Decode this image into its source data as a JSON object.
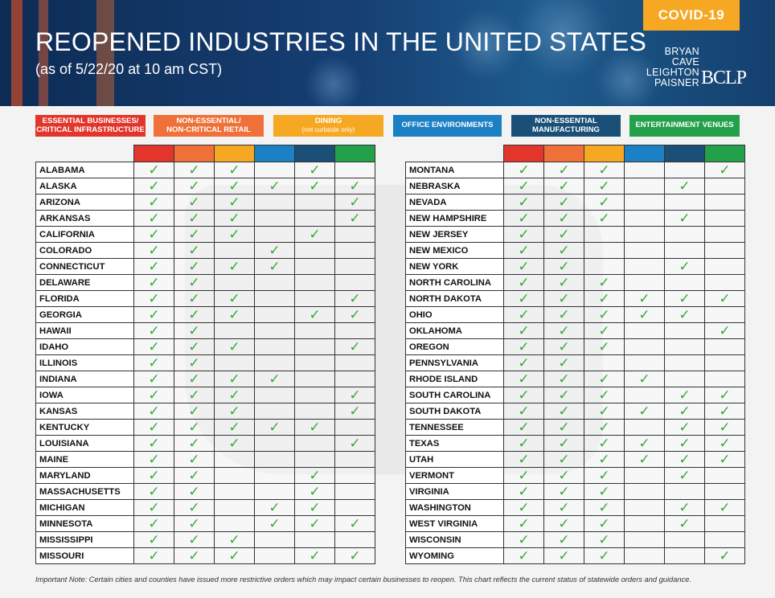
{
  "header": {
    "badge": "COVID-19",
    "title": "REOPENED INDUSTRIES IN THE UNITED STATES",
    "subtitle": "(as of 5/22/20 at 10 am CST)",
    "logo_lines": [
      "BRYAN",
      "CAVE",
      "LEIGHTON",
      "PAISNER"
    ],
    "logo_mark": "BCLP"
  },
  "legend": [
    {
      "label": "ESSENTIAL BUSINESSES/\nCRITICAL INFRASTRUCTURE",
      "sub": "",
      "color": "#e2352b"
    },
    {
      "label": "NON-ESSENTIAL/\nNON-CRITICAL RETAIL",
      "sub": "",
      "color": "#ef7139"
    },
    {
      "label": "DINING",
      "sub": "(not curbside only)",
      "color": "#f7a823"
    },
    {
      "label": "OFFICE ENVIRONMENTS",
      "sub": "",
      "color": "#1b80c4"
    },
    {
      "label": "NON-ESSENTIAL\nMANUFACTURING",
      "sub": "",
      "color": "#1a4f78"
    },
    {
      "label": "ENTERTAINMENT VENUES",
      "sub": "",
      "color": "#23a04a"
    }
  ],
  "check_symbol": "✓",
  "tables": {
    "left": [
      {
        "state": "ALABAMA",
        "marks": [
          1,
          1,
          1,
          0,
          1,
          0
        ]
      },
      {
        "state": "ALASKA",
        "marks": [
          1,
          1,
          1,
          1,
          1,
          1
        ]
      },
      {
        "state": "ARIZONA",
        "marks": [
          1,
          1,
          1,
          0,
          0,
          1
        ]
      },
      {
        "state": "ARKANSAS",
        "marks": [
          1,
          1,
          1,
          0,
          0,
          1
        ]
      },
      {
        "state": "CALIFORNIA",
        "marks": [
          1,
          1,
          1,
          0,
          1,
          0
        ]
      },
      {
        "state": "COLORADO",
        "marks": [
          1,
          1,
          0,
          1,
          0,
          0
        ]
      },
      {
        "state": "CONNECTICUT",
        "marks": [
          1,
          1,
          1,
          1,
          0,
          0
        ]
      },
      {
        "state": "DELAWARE",
        "marks": [
          1,
          1,
          0,
          0,
          0,
          0
        ]
      },
      {
        "state": "FLORIDA",
        "marks": [
          1,
          1,
          1,
          0,
          0,
          1
        ]
      },
      {
        "state": "GEORGIA",
        "marks": [
          1,
          1,
          1,
          0,
          1,
          1
        ]
      },
      {
        "state": "HAWAII",
        "marks": [
          1,
          1,
          0,
          0,
          0,
          0
        ]
      },
      {
        "state": "IDAHO",
        "marks": [
          1,
          1,
          1,
          0,
          0,
          1
        ]
      },
      {
        "state": "ILLINOIS",
        "marks": [
          1,
          1,
          0,
          0,
          0,
          0
        ]
      },
      {
        "state": "INDIANA",
        "marks": [
          1,
          1,
          1,
          1,
          0,
          0
        ]
      },
      {
        "state": "IOWA",
        "marks": [
          1,
          1,
          1,
          0,
          0,
          1
        ]
      },
      {
        "state": "KANSAS",
        "marks": [
          1,
          1,
          1,
          0,
          0,
          1
        ]
      },
      {
        "state": "KENTUCKY",
        "marks": [
          1,
          1,
          1,
          1,
          1,
          0
        ]
      },
      {
        "state": "LOUISIANA",
        "marks": [
          1,
          1,
          1,
          0,
          0,
          1
        ]
      },
      {
        "state": "MAINE",
        "marks": [
          1,
          1,
          0,
          0,
          0,
          0
        ]
      },
      {
        "state": "MARYLAND",
        "marks": [
          1,
          1,
          0,
          0,
          1,
          0
        ]
      },
      {
        "state": "MASSACHUSETTS",
        "marks": [
          1,
          1,
          0,
          0,
          1,
          0
        ]
      },
      {
        "state": "MICHIGAN",
        "marks": [
          1,
          1,
          0,
          1,
          1,
          0
        ]
      },
      {
        "state": "MINNESOTA",
        "marks": [
          1,
          1,
          0,
          1,
          1,
          1
        ]
      },
      {
        "state": "MISSISSIPPI",
        "marks": [
          1,
          1,
          1,
          0,
          0,
          0
        ]
      },
      {
        "state": "MISSOURI",
        "marks": [
          1,
          1,
          1,
          0,
          1,
          1
        ]
      }
    ],
    "right": [
      {
        "state": "MONTANA",
        "marks": [
          1,
          1,
          1,
          0,
          0,
          1
        ]
      },
      {
        "state": "NEBRASKA",
        "marks": [
          1,
          1,
          1,
          0,
          1,
          0
        ]
      },
      {
        "state": "NEVADA",
        "marks": [
          1,
          1,
          1,
          0,
          0,
          0
        ]
      },
      {
        "state": "NEW HAMPSHIRE",
        "marks": [
          1,
          1,
          1,
          0,
          1,
          0
        ]
      },
      {
        "state": "NEW JERSEY",
        "marks": [
          1,
          1,
          0,
          0,
          0,
          0
        ]
      },
      {
        "state": "NEW MEXICO",
        "marks": [
          1,
          1,
          0,
          0,
          0,
          0
        ]
      },
      {
        "state": "NEW YORK",
        "marks": [
          1,
          1,
          0,
          0,
          1,
          0
        ]
      },
      {
        "state": "NORTH CAROLINA",
        "marks": [
          1,
          1,
          1,
          0,
          0,
          0
        ]
      },
      {
        "state": "NORTH DAKOTA",
        "marks": [
          1,
          1,
          1,
          1,
          1,
          1
        ]
      },
      {
        "state": "OHIO",
        "marks": [
          1,
          1,
          1,
          1,
          1,
          0
        ]
      },
      {
        "state": "OKLAHOMA",
        "marks": [
          1,
          1,
          1,
          0,
          0,
          1
        ]
      },
      {
        "state": "OREGON",
        "marks": [
          1,
          1,
          1,
          0,
          0,
          0
        ]
      },
      {
        "state": "PENNSYLVANIA",
        "marks": [
          1,
          1,
          0,
          0,
          0,
          0
        ]
      },
      {
        "state": "RHODE ISLAND",
        "marks": [
          1,
          1,
          1,
          1,
          0,
          0
        ]
      },
      {
        "state": "SOUTH CAROLINA",
        "marks": [
          1,
          1,
          1,
          0,
          1,
          1
        ]
      },
      {
        "state": "SOUTH DAKOTA",
        "marks": [
          1,
          1,
          1,
          1,
          1,
          1
        ]
      },
      {
        "state": "TENNESSEE",
        "marks": [
          1,
          1,
          1,
          0,
          1,
          1
        ]
      },
      {
        "state": "TEXAS",
        "marks": [
          1,
          1,
          1,
          1,
          1,
          1
        ]
      },
      {
        "state": "UTAH",
        "marks": [
          1,
          1,
          1,
          1,
          1,
          1
        ]
      },
      {
        "state": "VERMONT",
        "marks": [
          1,
          1,
          1,
          0,
          1,
          0
        ]
      },
      {
        "state": "VIRGINIA",
        "marks": [
          1,
          1,
          1,
          0,
          0,
          0
        ]
      },
      {
        "state": "WASHINGTON",
        "marks": [
          1,
          1,
          1,
          0,
          1,
          1
        ]
      },
      {
        "state": "WEST VIRGINIA",
        "marks": [
          1,
          1,
          1,
          0,
          1,
          0
        ]
      },
      {
        "state": "WISCONSIN",
        "marks": [
          1,
          1,
          1,
          0,
          0,
          0
        ]
      },
      {
        "state": "WYOMING",
        "marks": [
          1,
          1,
          1,
          0,
          0,
          1
        ]
      }
    ]
  },
  "footnote": "Important Note: Certain cities and counties have issued more restrictive orders which may impact certain businesses to reopen. This chart reflects the current status of statewide orders and guidance."
}
